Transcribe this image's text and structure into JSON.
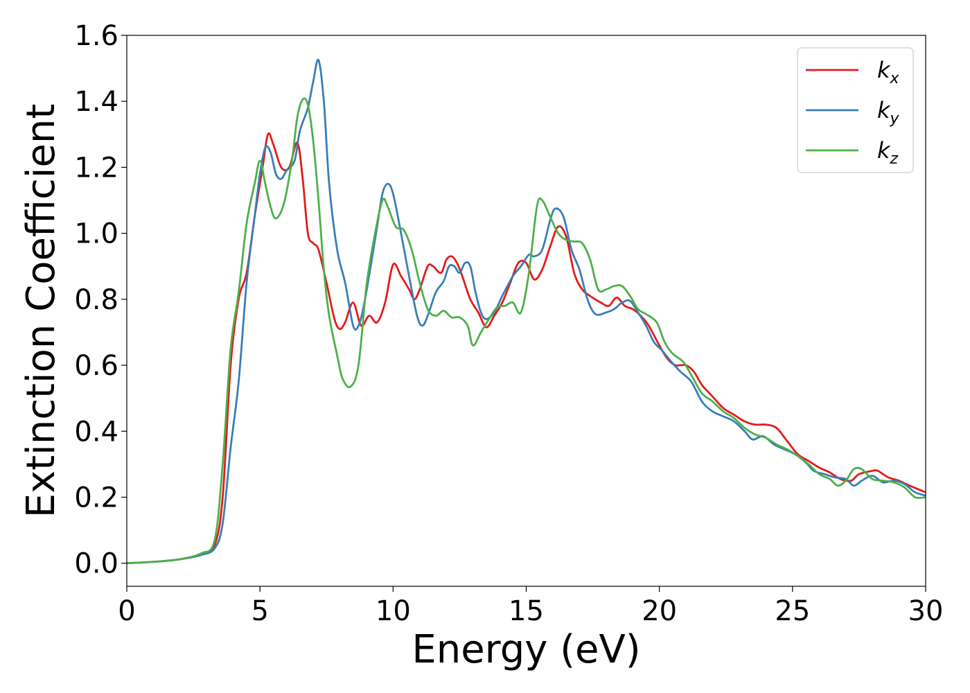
{
  "chart_data": {
    "type": "line",
    "title": "",
    "xlabel": "Energy (eV)",
    "ylabel": "Extinction Coefficient",
    "xlim": [
      0,
      30
    ],
    "ylim": [
      -0.07,
      1.6
    ],
    "xticks": [
      0,
      5,
      10,
      15,
      20,
      25,
      30
    ],
    "xtick_labels": [
      "0",
      "5",
      "10",
      "15",
      "20",
      "25",
      "30"
    ],
    "yticks": [
      0.0,
      0.2,
      0.4,
      0.6,
      0.8,
      1.0,
      1.2,
      1.4,
      1.6
    ],
    "ytick_labels": [
      "0.0",
      "0.2",
      "0.4",
      "0.6",
      "0.8",
      "1.0",
      "1.2",
      "1.4",
      "1.6"
    ],
    "grid": false,
    "legend_position": "top-right",
    "series": [
      {
        "name": "k_x",
        "label_base": "k",
        "label_sub": "x",
        "color": "#e41a1c",
        "points": [
          [
            0,
            0
          ],
          [
            1,
            0.004
          ],
          [
            2,
            0.012
          ],
          [
            2.8,
            0.028
          ],
          [
            3.3,
            0.055
          ],
          [
            3.6,
            0.2
          ],
          [
            3.9,
            0.6
          ],
          [
            4.2,
            0.8
          ],
          [
            4.5,
            0.88
          ],
          [
            4.8,
            1.05
          ],
          [
            5.1,
            1.2
          ],
          [
            5.3,
            1.3
          ],
          [
            5.5,
            1.27
          ],
          [
            5.8,
            1.2
          ],
          [
            6.1,
            1.2
          ],
          [
            6.4,
            1.275
          ],
          [
            6.6,
            1.17
          ],
          [
            6.8,
            1.0
          ],
          [
            7.0,
            0.97
          ],
          [
            7.2,
            0.95
          ],
          [
            7.5,
            0.85
          ],
          [
            7.8,
            0.74
          ],
          [
            8.0,
            0.71
          ],
          [
            8.2,
            0.73
          ],
          [
            8.5,
            0.79
          ],
          [
            8.8,
            0.72
          ],
          [
            9.1,
            0.75
          ],
          [
            9.4,
            0.73
          ],
          [
            9.7,
            0.79
          ],
          [
            10.0,
            0.905
          ],
          [
            10.3,
            0.87
          ],
          [
            10.6,
            0.83
          ],
          [
            10.8,
            0.8
          ],
          [
            11.0,
            0.83
          ],
          [
            11.3,
            0.9
          ],
          [
            11.5,
            0.9
          ],
          [
            11.8,
            0.88
          ],
          [
            12.0,
            0.92
          ],
          [
            12.2,
            0.93
          ],
          [
            12.4,
            0.91
          ],
          [
            12.6,
            0.87
          ],
          [
            12.9,
            0.8
          ],
          [
            13.2,
            0.76
          ],
          [
            13.5,
            0.715
          ],
          [
            13.8,
            0.75
          ],
          [
            14.1,
            0.79
          ],
          [
            14.4,
            0.85
          ],
          [
            14.7,
            0.91
          ],
          [
            15.0,
            0.91
          ],
          [
            15.3,
            0.86
          ],
          [
            15.6,
            0.89
          ],
          [
            15.9,
            0.96
          ],
          [
            16.2,
            1.02
          ],
          [
            16.5,
            0.99
          ],
          [
            16.8,
            0.88
          ],
          [
            17.1,
            0.83
          ],
          [
            17.4,
            0.81
          ],
          [
            17.8,
            0.79
          ],
          [
            18.1,
            0.78
          ],
          [
            18.4,
            0.805
          ],
          [
            18.7,
            0.78
          ],
          [
            19.0,
            0.77
          ],
          [
            19.3,
            0.75
          ],
          [
            19.6,
            0.72
          ],
          [
            20.0,
            0.66
          ],
          [
            20.3,
            0.62
          ],
          [
            20.6,
            0.6
          ],
          [
            21.0,
            0.6
          ],
          [
            21.3,
            0.58
          ],
          [
            21.6,
            0.54
          ],
          [
            22.0,
            0.505
          ],
          [
            22.4,
            0.47
          ],
          [
            22.8,
            0.45
          ],
          [
            23.2,
            0.43
          ],
          [
            23.6,
            0.42
          ],
          [
            24.0,
            0.42
          ],
          [
            24.4,
            0.41
          ],
          [
            24.8,
            0.37
          ],
          [
            25.2,
            0.33
          ],
          [
            25.6,
            0.31
          ],
          [
            26.0,
            0.29
          ],
          [
            26.4,
            0.275
          ],
          [
            26.8,
            0.255
          ],
          [
            27.2,
            0.25
          ],
          [
            27.5,
            0.27
          ],
          [
            28.0,
            0.28
          ],
          [
            28.2,
            0.28
          ],
          [
            28.6,
            0.26
          ],
          [
            29.0,
            0.25
          ],
          [
            29.4,
            0.235
          ],
          [
            30.0,
            0.215
          ]
        ]
      },
      {
        "name": "k_y",
        "label_base": "k",
        "label_sub": "y",
        "color": "#377eb8",
        "points": [
          [
            0,
            0
          ],
          [
            1,
            0.004
          ],
          [
            2,
            0.012
          ],
          [
            2.8,
            0.025
          ],
          [
            3.3,
            0.045
          ],
          [
            3.6,
            0.12
          ],
          [
            3.9,
            0.35
          ],
          [
            4.2,
            0.55
          ],
          [
            4.5,
            0.85
          ],
          [
            4.8,
            1.05
          ],
          [
            5.0,
            1.18
          ],
          [
            5.2,
            1.26
          ],
          [
            5.4,
            1.245
          ],
          [
            5.6,
            1.18
          ],
          [
            5.8,
            1.165
          ],
          [
            6.0,
            1.19
          ],
          [
            6.3,
            1.22
          ],
          [
            6.5,
            1.31
          ],
          [
            6.8,
            1.38
          ],
          [
            7.0,
            1.46
          ],
          [
            7.2,
            1.525
          ],
          [
            7.4,
            1.4
          ],
          [
            7.6,
            1.15
          ],
          [
            7.9,
            0.95
          ],
          [
            8.2,
            0.85
          ],
          [
            8.5,
            0.72
          ],
          [
            8.7,
            0.72
          ],
          [
            8.9,
            0.78
          ],
          [
            9.2,
            0.92
          ],
          [
            9.4,
            1.02
          ],
          [
            9.6,
            1.12
          ],
          [
            9.8,
            1.15
          ],
          [
            10.0,
            1.12
          ],
          [
            10.3,
            1.0
          ],
          [
            10.6,
            0.87
          ],
          [
            10.9,
            0.75
          ],
          [
            11.1,
            0.72
          ],
          [
            11.3,
            0.75
          ],
          [
            11.6,
            0.82
          ],
          [
            11.9,
            0.855
          ],
          [
            12.1,
            0.9
          ],
          [
            12.3,
            0.9
          ],
          [
            12.5,
            0.88
          ],
          [
            12.7,
            0.91
          ],
          [
            12.9,
            0.9
          ],
          [
            13.1,
            0.82
          ],
          [
            13.3,
            0.76
          ],
          [
            13.5,
            0.74
          ],
          [
            13.8,
            0.76
          ],
          [
            14.1,
            0.81
          ],
          [
            14.5,
            0.87
          ],
          [
            14.8,
            0.9
          ],
          [
            15.1,
            0.935
          ],
          [
            15.3,
            0.93
          ],
          [
            15.6,
            0.95
          ],
          [
            15.9,
            1.04
          ],
          [
            16.1,
            1.075
          ],
          [
            16.4,
            1.05
          ],
          [
            16.7,
            0.95
          ],
          [
            17.0,
            0.89
          ],
          [
            17.3,
            0.8
          ],
          [
            17.6,
            0.755
          ],
          [
            18.0,
            0.76
          ],
          [
            18.3,
            0.77
          ],
          [
            18.6,
            0.79
          ],
          [
            18.9,
            0.795
          ],
          [
            19.2,
            0.76
          ],
          [
            19.5,
            0.72
          ],
          [
            19.8,
            0.67
          ],
          [
            20.1,
            0.645
          ],
          [
            20.4,
            0.615
          ],
          [
            20.8,
            0.58
          ],
          [
            21.2,
            0.55
          ],
          [
            21.6,
            0.49
          ],
          [
            22.0,
            0.46
          ],
          [
            22.4,
            0.445
          ],
          [
            22.8,
            0.43
          ],
          [
            23.2,
            0.4
          ],
          [
            23.5,
            0.375
          ],
          [
            23.9,
            0.385
          ],
          [
            24.3,
            0.36
          ],
          [
            24.7,
            0.345
          ],
          [
            25.1,
            0.33
          ],
          [
            25.5,
            0.305
          ],
          [
            25.8,
            0.28
          ],
          [
            26.2,
            0.27
          ],
          [
            26.6,
            0.26
          ],
          [
            27.0,
            0.255
          ],
          [
            27.3,
            0.235
          ],
          [
            27.6,
            0.25
          ],
          [
            28.0,
            0.265
          ],
          [
            28.4,
            0.245
          ],
          [
            28.8,
            0.25
          ],
          [
            29.2,
            0.24
          ],
          [
            29.6,
            0.215
          ],
          [
            30.0,
            0.205
          ]
        ]
      },
      {
        "name": "k_z",
        "label_base": "k",
        "label_sub": "z",
        "color": "#4daf4a",
        "points": [
          [
            0,
            0
          ],
          [
            1,
            0.004
          ],
          [
            2,
            0.012
          ],
          [
            2.8,
            0.03
          ],
          [
            3.3,
            0.07
          ],
          [
            3.6,
            0.3
          ],
          [
            3.9,
            0.65
          ],
          [
            4.2,
            0.82
          ],
          [
            4.5,
            1.03
          ],
          [
            4.8,
            1.15
          ],
          [
            5.0,
            1.22
          ],
          [
            5.2,
            1.15
          ],
          [
            5.4,
            1.08
          ],
          [
            5.6,
            1.045
          ],
          [
            5.9,
            1.09
          ],
          [
            6.2,
            1.22
          ],
          [
            6.4,
            1.35
          ],
          [
            6.6,
            1.405
          ],
          [
            6.8,
            1.39
          ],
          [
            7.0,
            1.28
          ],
          [
            7.2,
            1.1
          ],
          [
            7.4,
            0.89
          ],
          [
            7.6,
            0.75
          ],
          [
            7.9,
            0.63
          ],
          [
            8.1,
            0.56
          ],
          [
            8.4,
            0.535
          ],
          [
            8.7,
            0.6
          ],
          [
            9.0,
            0.84
          ],
          [
            9.3,
            0.99
          ],
          [
            9.6,
            1.1
          ],
          [
            9.8,
            1.08
          ],
          [
            10.1,
            1.02
          ],
          [
            10.4,
            1.01
          ],
          [
            10.7,
            0.95
          ],
          [
            11.0,
            0.85
          ],
          [
            11.3,
            0.77
          ],
          [
            11.6,
            0.75
          ],
          [
            11.9,
            0.765
          ],
          [
            12.2,
            0.745
          ],
          [
            12.5,
            0.745
          ],
          [
            12.8,
            0.72
          ],
          [
            13.0,
            0.66
          ],
          [
            13.3,
            0.7
          ],
          [
            13.6,
            0.74
          ],
          [
            13.9,
            0.775
          ],
          [
            14.2,
            0.78
          ],
          [
            14.5,
            0.79
          ],
          [
            14.8,
            0.76
          ],
          [
            15.1,
            0.88
          ],
          [
            15.4,
            1.08
          ],
          [
            15.6,
            1.1
          ],
          [
            15.9,
            1.05
          ],
          [
            16.2,
            1.0
          ],
          [
            16.5,
            0.98
          ],
          [
            16.8,
            0.975
          ],
          [
            17.1,
            0.97
          ],
          [
            17.4,
            0.92
          ],
          [
            17.7,
            0.83
          ],
          [
            18.0,
            0.83
          ],
          [
            18.3,
            0.84
          ],
          [
            18.6,
            0.84
          ],
          [
            18.9,
            0.81
          ],
          [
            19.2,
            0.77
          ],
          [
            19.5,
            0.755
          ],
          [
            19.9,
            0.73
          ],
          [
            20.2,
            0.67
          ],
          [
            20.5,
            0.635
          ],
          [
            20.9,
            0.61
          ],
          [
            21.2,
            0.57
          ],
          [
            21.6,
            0.515
          ],
          [
            22.0,
            0.49
          ],
          [
            22.4,
            0.46
          ],
          [
            22.8,
            0.44
          ],
          [
            23.2,
            0.41
          ],
          [
            23.6,
            0.39
          ],
          [
            24.0,
            0.38
          ],
          [
            24.4,
            0.36
          ],
          [
            24.8,
            0.345
          ],
          [
            25.2,
            0.325
          ],
          [
            25.6,
            0.3
          ],
          [
            26.0,
            0.27
          ],
          [
            26.4,
            0.255
          ],
          [
            26.7,
            0.235
          ],
          [
            27.0,
            0.25
          ],
          [
            27.3,
            0.285
          ],
          [
            27.6,
            0.285
          ],
          [
            28.0,
            0.255
          ],
          [
            28.4,
            0.25
          ],
          [
            28.8,
            0.245
          ],
          [
            29.2,
            0.23
          ],
          [
            29.6,
            0.2
          ],
          [
            30.0,
            0.2
          ]
        ]
      }
    ]
  }
}
